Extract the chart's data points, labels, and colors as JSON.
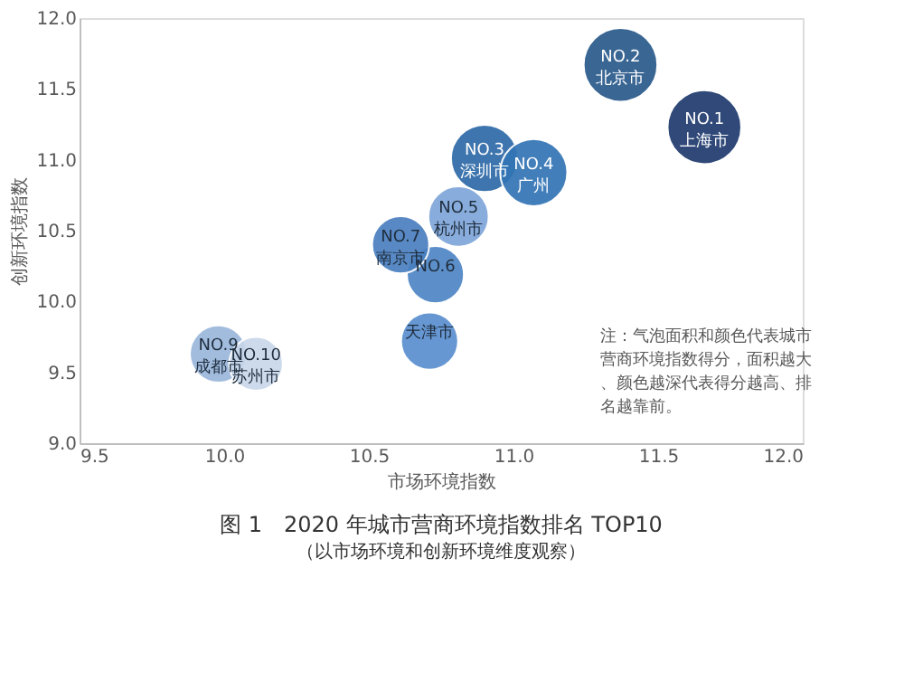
{
  "chart_data": {
    "type": "bubble",
    "title": "图 1　2020 年城市营商环境指数排名 TOP10",
    "subtitle": "（以市场环境和创新环境维度观察）",
    "xlabel": "市场环境指数",
    "ylabel": "创新环境指数",
    "x": [
      11.66,
      11.37,
      10.9,
      11.07,
      10.81,
      10.73,
      10.61,
      10.71,
      9.98,
      10.11
    ],
    "values": [
      11.23,
      11.67,
      11.01,
      10.91,
      10.6,
      10.19,
      10.4,
      9.72,
      9.63,
      9.56
    ],
    "sizes": [
      1,
      1,
      0.83,
      0.83,
      0.67,
      0.6,
      0.6,
      0.6,
      0.6,
      0.53
    ],
    "colors": [
      "#1f3a6e",
      "#2a5a8c",
      "#2e6aa8",
      "#3375b5",
      "#7ea6d8",
      "#4f86c6",
      "#4a7fc0",
      "#5a8fcf",
      "#9bb7dc",
      "#c9d7ea"
    ],
    "xlim": [
      9.5,
      12.0
    ],
    "xticks": [
      {
        "value": 9.5,
        "label": "9.5"
      },
      {
        "value": 10,
        "label": "10.0"
      },
      {
        "value": 10.5,
        "label": "10.5"
      },
      {
        "value": 11,
        "label": "11.0"
      },
      {
        "value": 11.5,
        "label": "11.5"
      },
      {
        "value": 12,
        "label": "12.0"
      }
    ],
    "ylim": [
      9.0,
      12.0
    ],
    "yticks": [
      {
        "value": 9,
        "label": "9.0"
      },
      {
        "value": 9.5,
        "label": "9.5"
      },
      {
        "value": 10,
        "label": "10.0"
      },
      {
        "value": 10.5,
        "label": "10.5"
      },
      {
        "value": 11,
        "label": "11.0"
      },
      {
        "value": 11.5,
        "label": "11.5"
      },
      {
        "value": 12,
        "label": "12.0"
      }
    ],
    "grid": false,
    "legend": false,
    "value_labels": [
      "NO.1 上海市",
      "NO.2 北京市",
      "NO.3 深圳市",
      "NO.4 广州",
      "NO.5 杭州市",
      "NO.6",
      "NO.7 南京市",
      "天津市",
      "NO.9 成都市",
      "NO.10 苏州市"
    ],
    "annotations": [
      "注：气泡面积和颜色代表城市营商环境指数得分，面积越大、颜色越深代表得分越高、排名越靠前。"
    ]
  }
}
